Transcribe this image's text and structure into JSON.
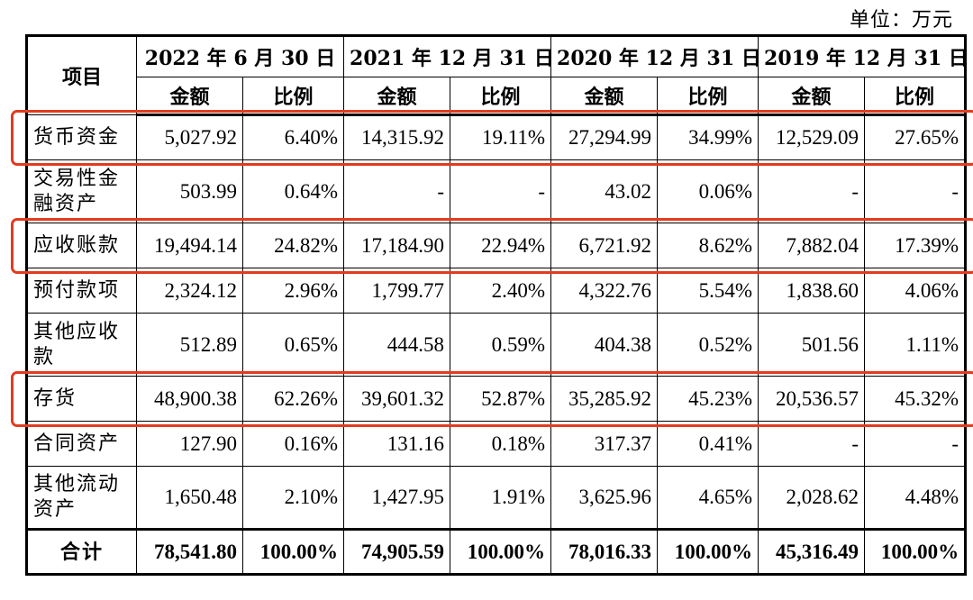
{
  "unit_label": "单位：万元",
  "header": {
    "item": "项目",
    "periods": [
      "2022 年 6 月 30 日",
      "2021 年 12 月 31 日",
      "2020 年 12 月 31 日",
      "2019 年 12 月 31 日"
    ],
    "amount": "金额",
    "ratio": "比例"
  },
  "rows": [
    {
      "label": "货币资金",
      "values": [
        "5,027.92",
        "6.40%",
        "14,315.92",
        "19.11%",
        "27,294.99",
        "34.99%",
        "12,529.09",
        "27.65%"
      ],
      "highlight": true
    },
    {
      "label": "交易性金融资产",
      "values": [
        "503.99",
        "0.64%",
        "-",
        "-",
        "43.02",
        "0.06%",
        "-",
        "-"
      ],
      "highlight": false
    },
    {
      "label": "应收账款",
      "values": [
        "19,494.14",
        "24.82%",
        "17,184.90",
        "22.94%",
        "6,721.92",
        "8.62%",
        "7,882.04",
        "17.39%"
      ],
      "highlight": true
    },
    {
      "label": "预付款项",
      "values": [
        "2,324.12",
        "2.96%",
        "1,799.77",
        "2.40%",
        "4,322.76",
        "5.54%",
        "1,838.60",
        "4.06%"
      ],
      "highlight": false
    },
    {
      "label": "其他应收款",
      "values": [
        "512.89",
        "0.65%",
        "444.58",
        "0.59%",
        "404.38",
        "0.52%",
        "501.56",
        "1.11%"
      ],
      "highlight": false
    },
    {
      "label": "存货",
      "values": [
        "48,900.38",
        "62.26%",
        "39,601.32",
        "52.87%",
        "35,285.92",
        "45.23%",
        "20,536.57",
        "45.32%"
      ],
      "highlight": true
    },
    {
      "label": "合同资产",
      "values": [
        "127.90",
        "0.16%",
        "131.16",
        "0.18%",
        "317.37",
        "0.41%",
        "-",
        "-"
      ],
      "highlight": false
    },
    {
      "label": "其他流动资产",
      "values": [
        "1,650.48",
        "2.10%",
        "1,427.95",
        "1.91%",
        "3,625.96",
        "4.65%",
        "2,028.62",
        "4.48%"
      ],
      "highlight": false
    }
  ],
  "total": {
    "label": "合计",
    "values": [
      "78,541.80",
      "100.00%",
      "74,905.59",
      "100.00%",
      "78,016.33",
      "100.00%",
      "45,316.49",
      "100.00%"
    ]
  },
  "highlight_color": "#e33b1f"
}
